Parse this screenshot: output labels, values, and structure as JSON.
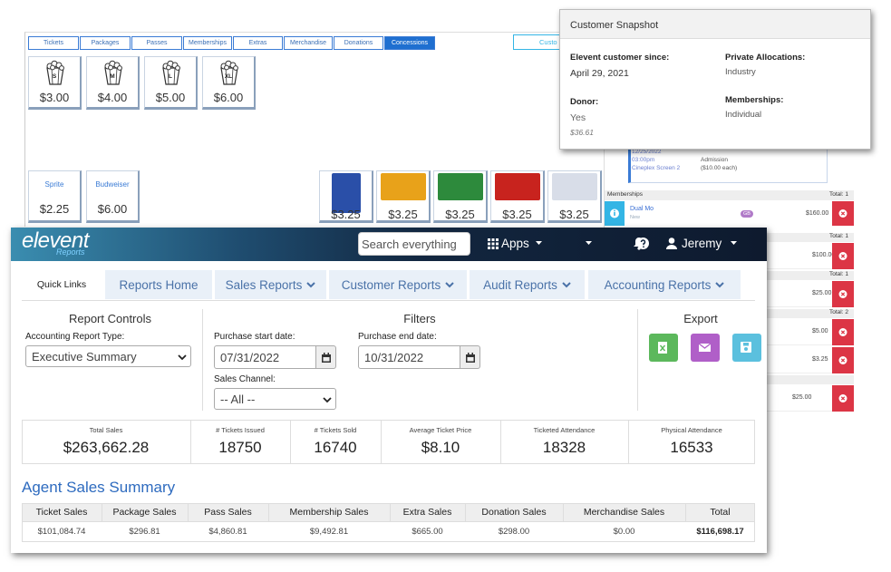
{
  "pos": {
    "tabs": [
      "Tickets",
      "Packages",
      "Passes",
      "Memberships",
      "Extras",
      "Merchandise",
      "Donations",
      "Concessions"
    ],
    "active_tab": 7,
    "customer_button": "Custo",
    "popcorn": [
      {
        "size": "S",
        "price": "$3.00"
      },
      {
        "size": "M",
        "price": "$4.00"
      },
      {
        "size": "L",
        "price": "$5.00"
      },
      {
        "size": "XL",
        "price": "$6.00"
      }
    ],
    "drinks": [
      {
        "name": "Sprite",
        "price": "$2.25"
      },
      {
        "name": "Budweiser",
        "price": "$6.00"
      }
    ],
    "candy": [
      {
        "price": "$3.25",
        "color": "#2a4fa8"
      },
      {
        "price": "$3.25",
        "color": "#e8a21a"
      },
      {
        "price": "$3.25",
        "color": "#2d8a3c"
      },
      {
        "price": "$3.25",
        "color": "#c8231e"
      },
      {
        "price": "$3.25",
        "color": "#d8dde8"
      }
    ]
  },
  "cart": {
    "event_date": "12/25/2022",
    "event_time": "03:00pm",
    "venue": "Cineplex Screen 2",
    "ticket_type": "Admission",
    "unit_price": "($10.00 each)",
    "memberships_header": "Memberships",
    "membership_total": "Total: 1",
    "membership_name": "Dual Mo",
    "membership_status": "New",
    "badge": "GB",
    "membership_price": "$160.00",
    "sections": [
      {
        "total": "Total: 1",
        "items": [
          "$100.00"
        ]
      },
      {
        "total": "Total: 1",
        "items": [
          "$25.00"
        ]
      },
      {
        "total": "Total: 2",
        "items": [
          "$5.00",
          "$3.25"
        ]
      },
      {
        "total": "",
        "items": [
          "$25.00"
        ]
      }
    ]
  },
  "snapshot": {
    "title": "Customer Snapshot",
    "since_label": "Elevent customer since:",
    "since": "April 29, 2021",
    "allocations_label": "Private Allocations:",
    "allocations": "Industry",
    "donor_label": "Donor:",
    "donor": "Yes",
    "donor_amount": "$36.61",
    "memberships_label": "Memberships:",
    "memberships": "Individual"
  },
  "app": {
    "logo": "elevent",
    "logo_sub": "Reports",
    "search": "Search everything",
    "apps": "Apps",
    "user": "Jeremy",
    "nav": [
      "Quick Links",
      "Reports Home",
      "Sales Reports",
      "Customer Reports",
      "Audit Reports",
      "Accounting Reports"
    ],
    "controls": {
      "report_controls": "Report Controls",
      "type_label": "Accounting Report Type:",
      "type_value": "Executive Summary",
      "filters": "Filters",
      "start_label": "Purchase start date:",
      "start": "07/31/2022",
      "end_label": "Purchase end date:",
      "end": "10/31/2022",
      "channel_label": "Sales Channel:",
      "channel": "-- All --",
      "export": "Export"
    },
    "stats": [
      {
        "label": "Total Sales",
        "value": "$263,662.28"
      },
      {
        "label": "# Tickets Issued",
        "value": "18750"
      },
      {
        "label": "# Tickets Sold",
        "value": "16740"
      },
      {
        "label": "Average Ticket Price",
        "value": "$8.10"
      },
      {
        "label": "Ticketed Attendance",
        "value": "18328"
      },
      {
        "label": "Physical Attendance",
        "value": "16533"
      }
    ],
    "summary": {
      "title": "Agent Sales Summary",
      "headers": [
        "Ticket Sales",
        "Package Sales",
        "Pass Sales",
        "Membership Sales",
        "Extra Sales",
        "Donation Sales",
        "Merchandise Sales",
        "Total"
      ],
      "row": [
        "$101,084.74",
        "$296.81",
        "$4,860.81",
        "$9,492.81",
        "$665.00",
        "$298.00",
        "$0.00",
        "$116,698.17"
      ]
    }
  }
}
